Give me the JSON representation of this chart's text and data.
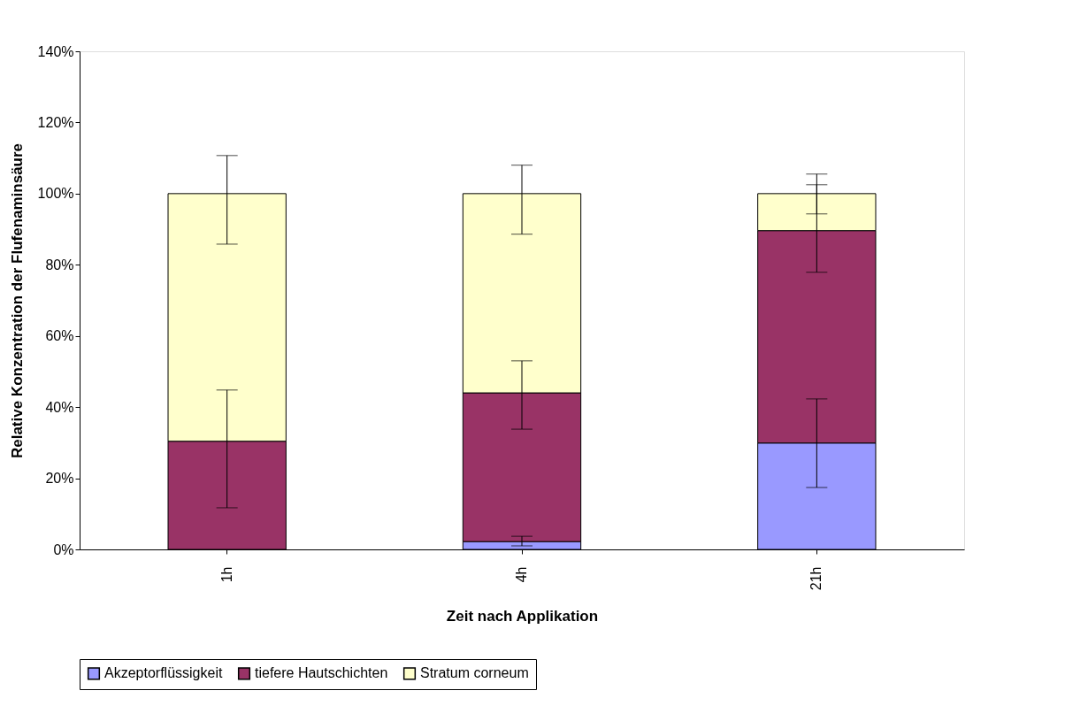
{
  "chart_data": {
    "type": "bar",
    "stacked": true,
    "xlabel": "Zeit nach Applikation",
    "ylabel": "Relative Konzentration der Flufenaminsäure",
    "categories": [
      "1h",
      "4h",
      "21h"
    ],
    "series": [
      {
        "name": "Akzeptorflüssigkeit",
        "color": "#9999ff",
        "values": [
          null,
          2.2,
          29.9
        ],
        "errors": [
          null,
          [
            1.0,
            3.7
          ],
          [
            17.4,
            42.3
          ]
        ]
      },
      {
        "name": "tiefere Hautschichten",
        "color": "#993366",
        "values": [
          30.4,
          41.8,
          59.7
        ],
        "errors": [
          [
            11.7,
            44.8
          ],
          [
            33.8,
            53.0
          ],
          [
            77.9,
            102.5
          ]
        ]
      },
      {
        "name": "Stratum corneum",
        "color": "#ffffcc",
        "values": [
          69.6,
          56.0,
          10.4
        ],
        "errors": [
          [
            85.8,
            110.7
          ],
          [
            88.6,
            108.0
          ],
          [
            94.3,
            105.5
          ]
        ]
      }
    ],
    "ylim": [
      0,
      140
    ],
    "yticks": [
      {
        "value": 0,
        "label": "0%"
      },
      {
        "value": 20,
        "label": "20%"
      },
      {
        "value": 40,
        "label": "40%"
      },
      {
        "value": 60,
        "label": "60%"
      },
      {
        "value": 80,
        "label": "80%"
      },
      {
        "value": 100,
        "label": "100%"
      },
      {
        "value": 120,
        "label": "120%"
      },
      {
        "value": 140,
        "label": "140%"
      }
    ],
    "grid": false,
    "legend": "bottom"
  }
}
